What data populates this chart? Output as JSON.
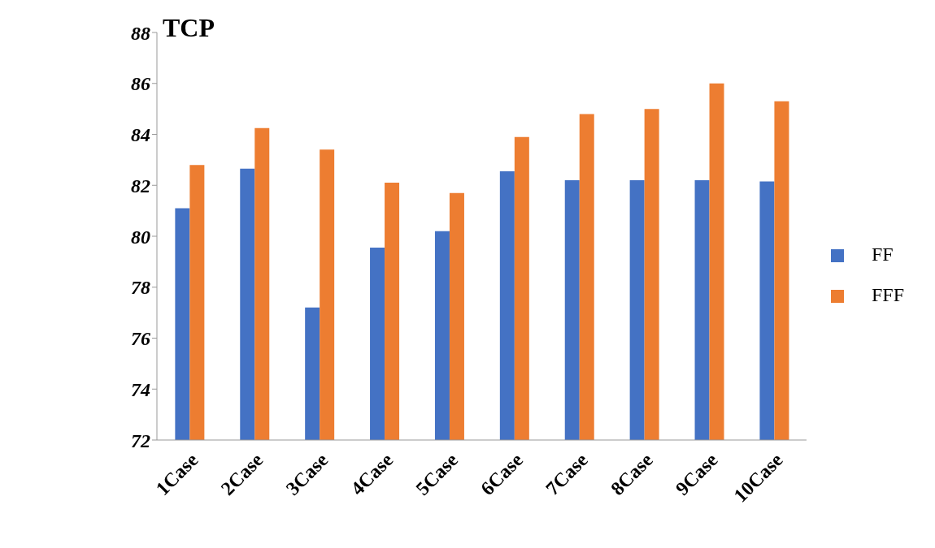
{
  "chart_data": {
    "type": "bar",
    "title": "TCP",
    "categories": [
      "1Case",
      "2Case",
      "3Case",
      "4Case",
      "5Case",
      "6Case",
      "7Case",
      "8Case",
      "9Case",
      "10Case"
    ],
    "series": [
      {
        "name": "FF",
        "color": "#4472c4",
        "values": [
          81.1,
          82.65,
          77.2,
          79.55,
          80.2,
          82.55,
          82.2,
          82.2,
          82.2,
          82.15
        ]
      },
      {
        "name": "FFF",
        "color": "#ed7d31",
        "values": [
          82.8,
          84.25,
          83.4,
          82.1,
          81.7,
          83.9,
          84.8,
          85.0,
          86.0,
          85.3
        ]
      }
    ],
    "ylim": [
      72,
      88
    ],
    "yticks": [
      72,
      74,
      76,
      78,
      80,
      82,
      84,
      86,
      88
    ],
    "grid": false,
    "legend": "right"
  }
}
